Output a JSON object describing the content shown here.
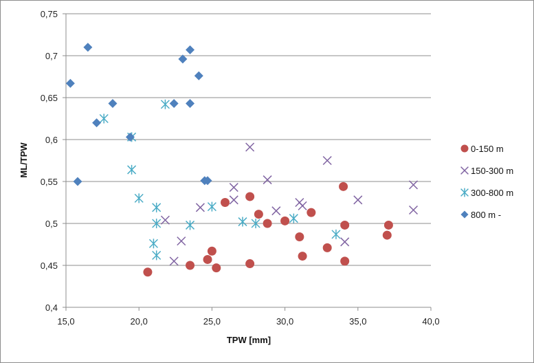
{
  "chart_data": {
    "type": "scatter",
    "title": "",
    "xlabel": "TPW [mm]",
    "ylabel": "ML/TPW",
    "xlim": [
      15,
      40
    ],
    "ylim": [
      0.4,
      0.75
    ],
    "xticks": [
      "15,0",
      "20,0",
      "25,0",
      "30,0",
      "35,0",
      "40,0"
    ],
    "xtick_values": [
      15,
      20,
      25,
      30,
      35,
      40
    ],
    "yticks": [
      "0,4",
      "0,45",
      "0,5",
      "0,55",
      "0,6",
      "0,65",
      "0,7",
      "0,75"
    ],
    "ytick_values": [
      0.4,
      0.45,
      0.5,
      0.55,
      0.6,
      0.65,
      0.7,
      0.75
    ],
    "grid": "horizontal",
    "legend_position": "right",
    "series": [
      {
        "name": "0-150 m",
        "marker": "circle",
        "color": "#c0504d",
        "points": [
          [
            20.6,
            0.442
          ],
          [
            23.5,
            0.45
          ],
          [
            24.7,
            0.457
          ],
          [
            25.0,
            0.467
          ],
          [
            25.3,
            0.447
          ],
          [
            25.9,
            0.525
          ],
          [
            27.6,
            0.532
          ],
          [
            27.6,
            0.452
          ],
          [
            28.2,
            0.511
          ],
          [
            28.8,
            0.5
          ],
          [
            30.0,
            0.503
          ],
          [
            31.0,
            0.484
          ],
          [
            31.2,
            0.461
          ],
          [
            31.8,
            0.513
          ],
          [
            32.9,
            0.471
          ],
          [
            34.0,
            0.544
          ],
          [
            34.1,
            0.498
          ],
          [
            34.1,
            0.455
          ],
          [
            37.0,
            0.486
          ],
          [
            37.1,
            0.498
          ]
        ]
      },
      {
        "name": "150-300 m",
        "marker": "x",
        "color": "#8064a2",
        "points": [
          [
            21.8,
            0.504
          ],
          [
            22.4,
            0.455
          ],
          [
            22.9,
            0.479
          ],
          [
            24.2,
            0.519
          ],
          [
            26.5,
            0.543
          ],
          [
            26.5,
            0.528
          ],
          [
            27.6,
            0.591
          ],
          [
            28.8,
            0.552
          ],
          [
            29.4,
            0.515
          ],
          [
            31.0,
            0.525
          ],
          [
            31.2,
            0.521
          ],
          [
            32.9,
            0.575
          ],
          [
            34.1,
            0.478
          ],
          [
            35.0,
            0.528
          ],
          [
            38.8,
            0.546
          ],
          [
            38.8,
            0.516
          ]
        ]
      },
      {
        "name": "300-800 m",
        "marker": "star",
        "color": "#4bacc6",
        "points": [
          [
            17.6,
            0.625
          ],
          [
            19.5,
            0.603
          ],
          [
            19.5,
            0.564
          ],
          [
            20.0,
            0.53
          ],
          [
            21.2,
            0.519
          ],
          [
            21.2,
            0.5
          ],
          [
            21.0,
            0.476
          ],
          [
            21.2,
            0.462
          ],
          [
            21.8,
            0.642
          ],
          [
            23.5,
            0.498
          ],
          [
            25.0,
            0.52
          ],
          [
            27.1,
            0.502
          ],
          [
            28.0,
            0.5
          ],
          [
            30.6,
            0.506
          ],
          [
            33.5,
            0.487
          ]
        ]
      },
      {
        "name": "800 m -",
        "marker": "diamond",
        "color": "#4f81bd",
        "points": [
          [
            15.3,
            0.667
          ],
          [
            16.5,
            0.71
          ],
          [
            17.1,
            0.62
          ],
          [
            18.2,
            0.643
          ],
          [
            19.4,
            0.603
          ],
          [
            15.8,
            0.55
          ],
          [
            22.4,
            0.643
          ],
          [
            23.0,
            0.696
          ],
          [
            23.5,
            0.707
          ],
          [
            24.1,
            0.676
          ],
          [
            23.5,
            0.643
          ],
          [
            24.5,
            0.551
          ],
          [
            24.7,
            0.551
          ]
        ]
      }
    ]
  }
}
